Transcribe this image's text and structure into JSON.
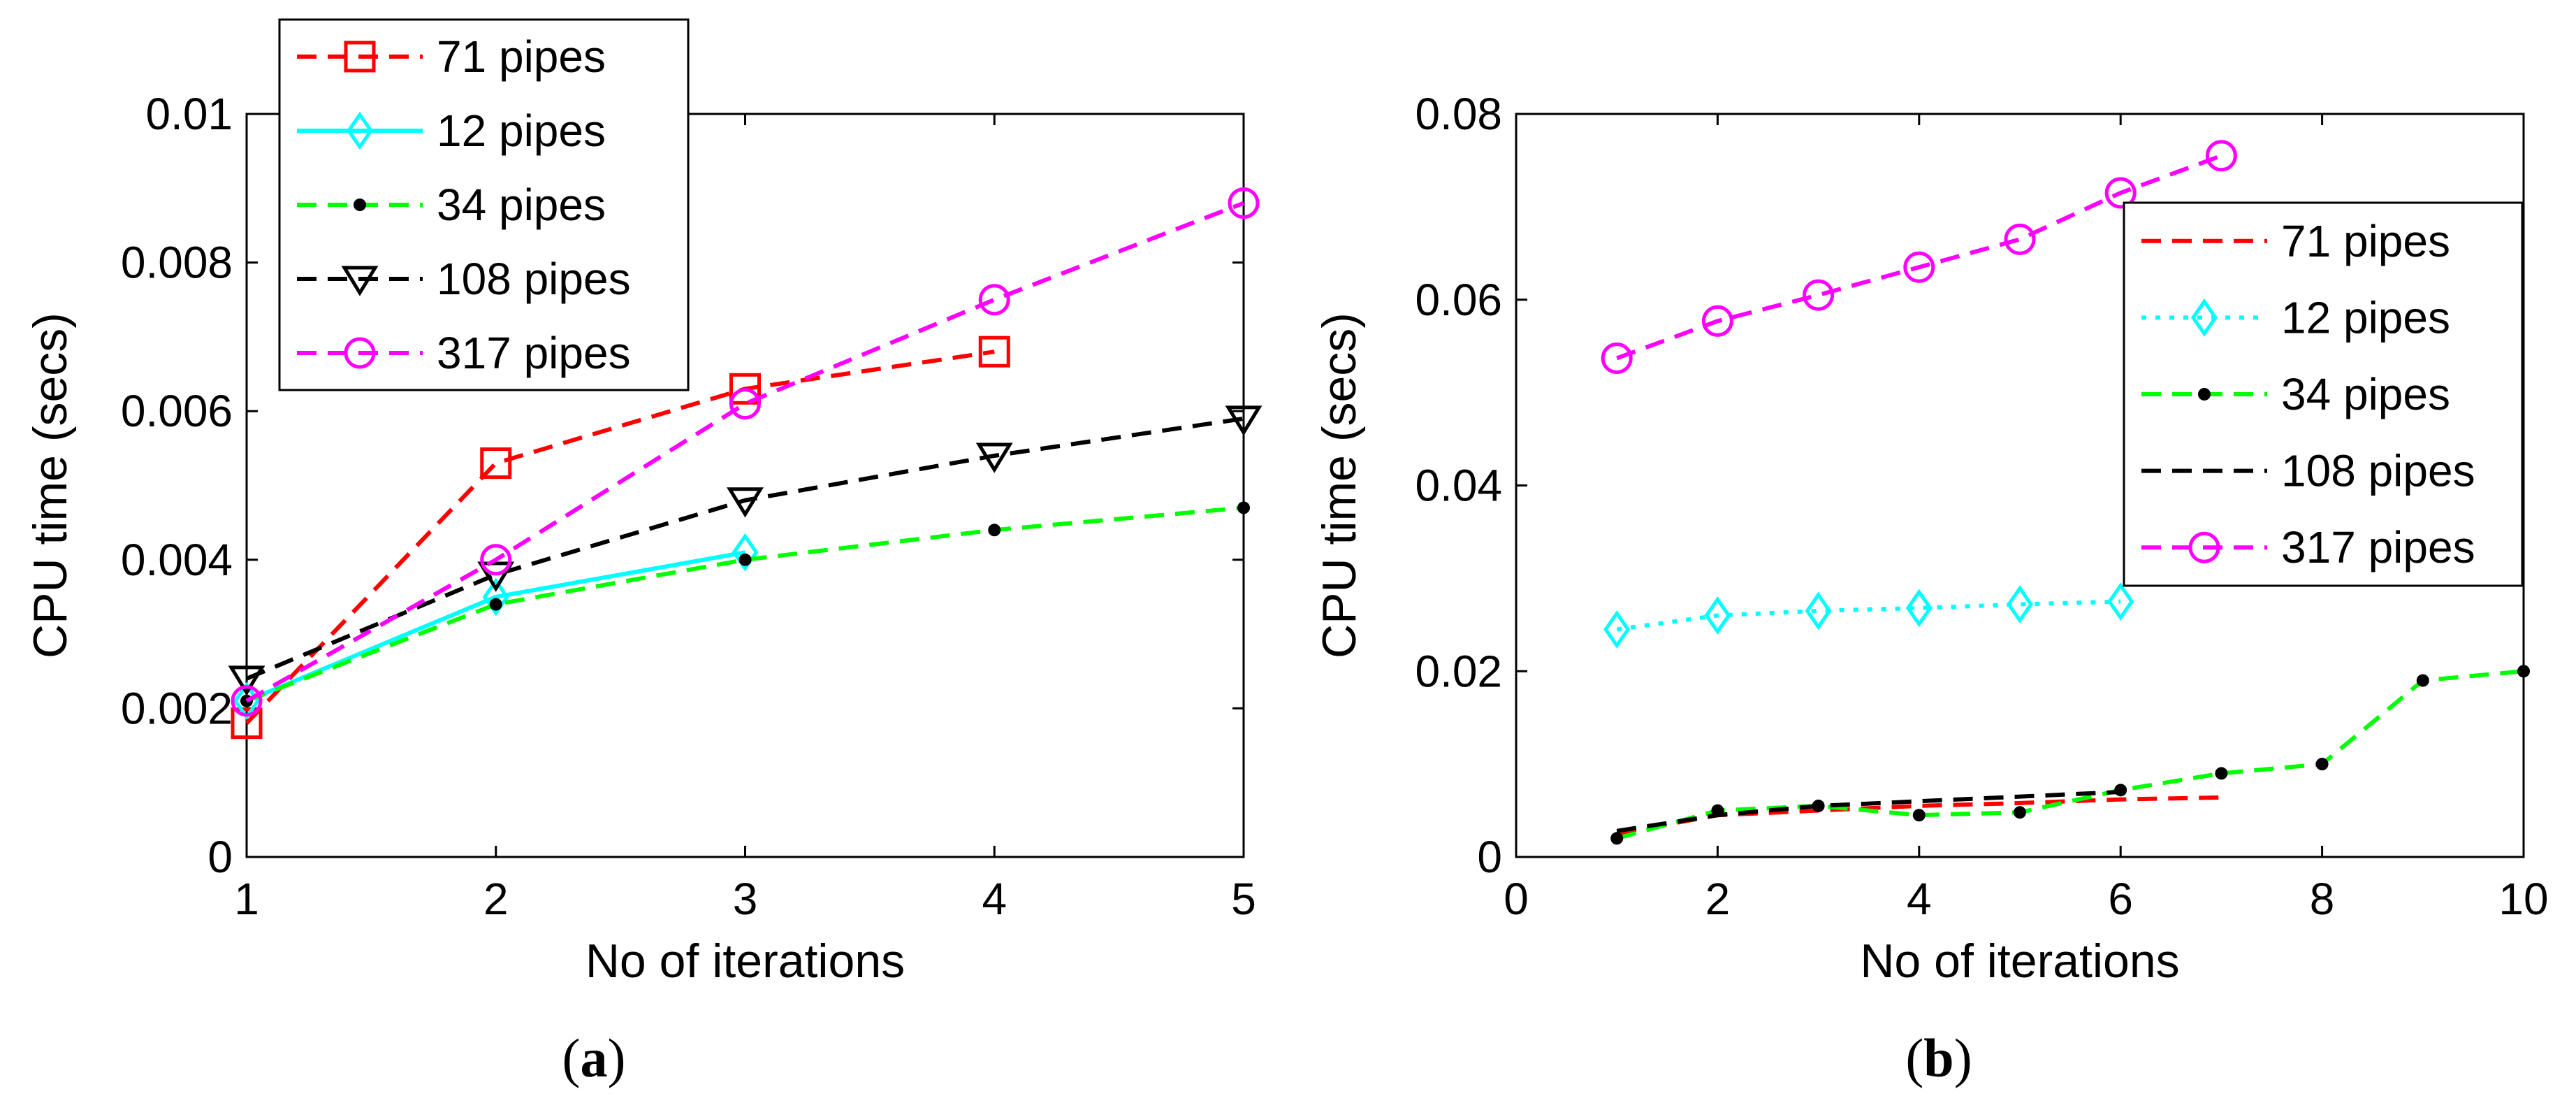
{
  "chart_data": [
    {
      "id": "a",
      "type": "line",
      "caption": {
        "open": "(",
        "letter": "a",
        "close": ")"
      },
      "xlabel": "No of iterations",
      "ylabel": "CPU time (secs)",
      "xlim": [
        1,
        5
      ],
      "ylim": [
        0,
        0.01
      ],
      "xticks": [
        1,
        2,
        3,
        4,
        5
      ],
      "xtick_labels": [
        "1",
        "2",
        "3",
        "4",
        "5"
      ],
      "yticks": [
        0,
        0.002,
        0.004,
        0.006,
        0.008,
        0.01
      ],
      "ytick_labels": [
        "0",
        "0.002",
        "0.004",
        "0.006",
        "0.008",
        "0.01"
      ],
      "grid": false,
      "legend_position": "top-left",
      "series": [
        {
          "name": "71 pipes",
          "color": "#ff0000",
          "dash": "dashed",
          "marker": "square",
          "x": [
            1,
            2,
            3,
            4
          ],
          "y": [
            0.0018,
            0.0053,
            0.0063,
            0.0068
          ]
        },
        {
          "name": "12 pipes",
          "color": "#00ffff",
          "dash": "solid",
          "marker": "diamond",
          "x": [
            1,
            2,
            3
          ],
          "y": [
            0.0021,
            0.0035,
            0.0041
          ]
        },
        {
          "name": "34 pipes",
          "color": "#00ff00",
          "dash": "dashed",
          "marker": "dot",
          "x": [
            1,
            2,
            3,
            4,
            5
          ],
          "y": [
            0.0021,
            0.0034,
            0.004,
            0.0044,
            0.0047
          ]
        },
        {
          "name": "108 pipes",
          "color": "#000000",
          "dash": "dashed",
          "marker": "triangle-down",
          "x": [
            1,
            2,
            3,
            4,
            5
          ],
          "y": [
            0.0024,
            0.0038,
            0.0048,
            0.0054,
            0.0059
          ]
        },
        {
          "name": "317 pipes",
          "color": "#ff00ff",
          "dash": "dashed",
          "marker": "circle",
          "x": [
            1,
            2,
            3,
            4,
            5
          ],
          "y": [
            0.0021,
            0.004,
            0.0061,
            0.0075,
            0.0088
          ]
        }
      ]
    },
    {
      "id": "b",
      "type": "line",
      "caption": {
        "open": "(",
        "letter": "b",
        "close": ")"
      },
      "xlabel": "No of iterations",
      "ylabel": "CPU time (secs)",
      "xlim": [
        0,
        10
      ],
      "ylim": [
        0,
        0.08
      ],
      "xticks": [
        0,
        2,
        4,
        6,
        8,
        10
      ],
      "xtick_labels": [
        "0",
        "2",
        "4",
        "6",
        "8",
        "10"
      ],
      "yticks": [
        0,
        0.02,
        0.04,
        0.06,
        0.08
      ],
      "ytick_labels": [
        "0",
        "0.02",
        "0.04",
        "0.06",
        "0.08"
      ],
      "grid": false,
      "legend_position": "top-right",
      "series": [
        {
          "name": "71 pipes",
          "color": "#ff0000",
          "dash": "dashed",
          "marker": "none",
          "x": [
            1,
            2,
            3,
            4,
            5,
            6,
            7
          ],
          "y": [
            0.0025,
            0.0045,
            0.005,
            0.0055,
            0.0058,
            0.0062,
            0.0064
          ]
        },
        {
          "name": "12 pipes",
          "color": "#00ffff",
          "dash": "dotted",
          "marker": "diamond",
          "x": [
            1,
            2,
            3,
            4,
            5,
            6
          ],
          "y": [
            0.0245,
            0.026,
            0.0265,
            0.0268,
            0.0272,
            0.0275
          ]
        },
        {
          "name": "34 pipes",
          "color": "#00ff00",
          "dash": "dashed",
          "marker": "dot",
          "x": [
            1,
            2,
            3,
            4,
            5,
            6,
            7,
            8,
            9,
            10
          ],
          "y": [
            0.002,
            0.005,
            0.0055,
            0.0045,
            0.0048,
            0.0072,
            0.009,
            0.01,
            0.019,
            0.02
          ]
        },
        {
          "name": "108 pipes",
          "color": "#000000",
          "dash": "dashed",
          "marker": "none",
          "x": [
            1,
            2,
            3,
            4,
            5,
            6
          ],
          "y": [
            0.0028,
            0.0045,
            0.0055,
            0.006,
            0.0065,
            0.007
          ]
        },
        {
          "name": "317 pipes",
          "color": "#ff00ff",
          "dash": "dashed",
          "marker": "circle",
          "x": [
            1,
            2,
            3,
            4,
            5,
            6,
            7
          ],
          "y": [
            0.0537,
            0.0577,
            0.0605,
            0.0635,
            0.0665,
            0.0715,
            0.0755
          ]
        }
      ]
    }
  ]
}
